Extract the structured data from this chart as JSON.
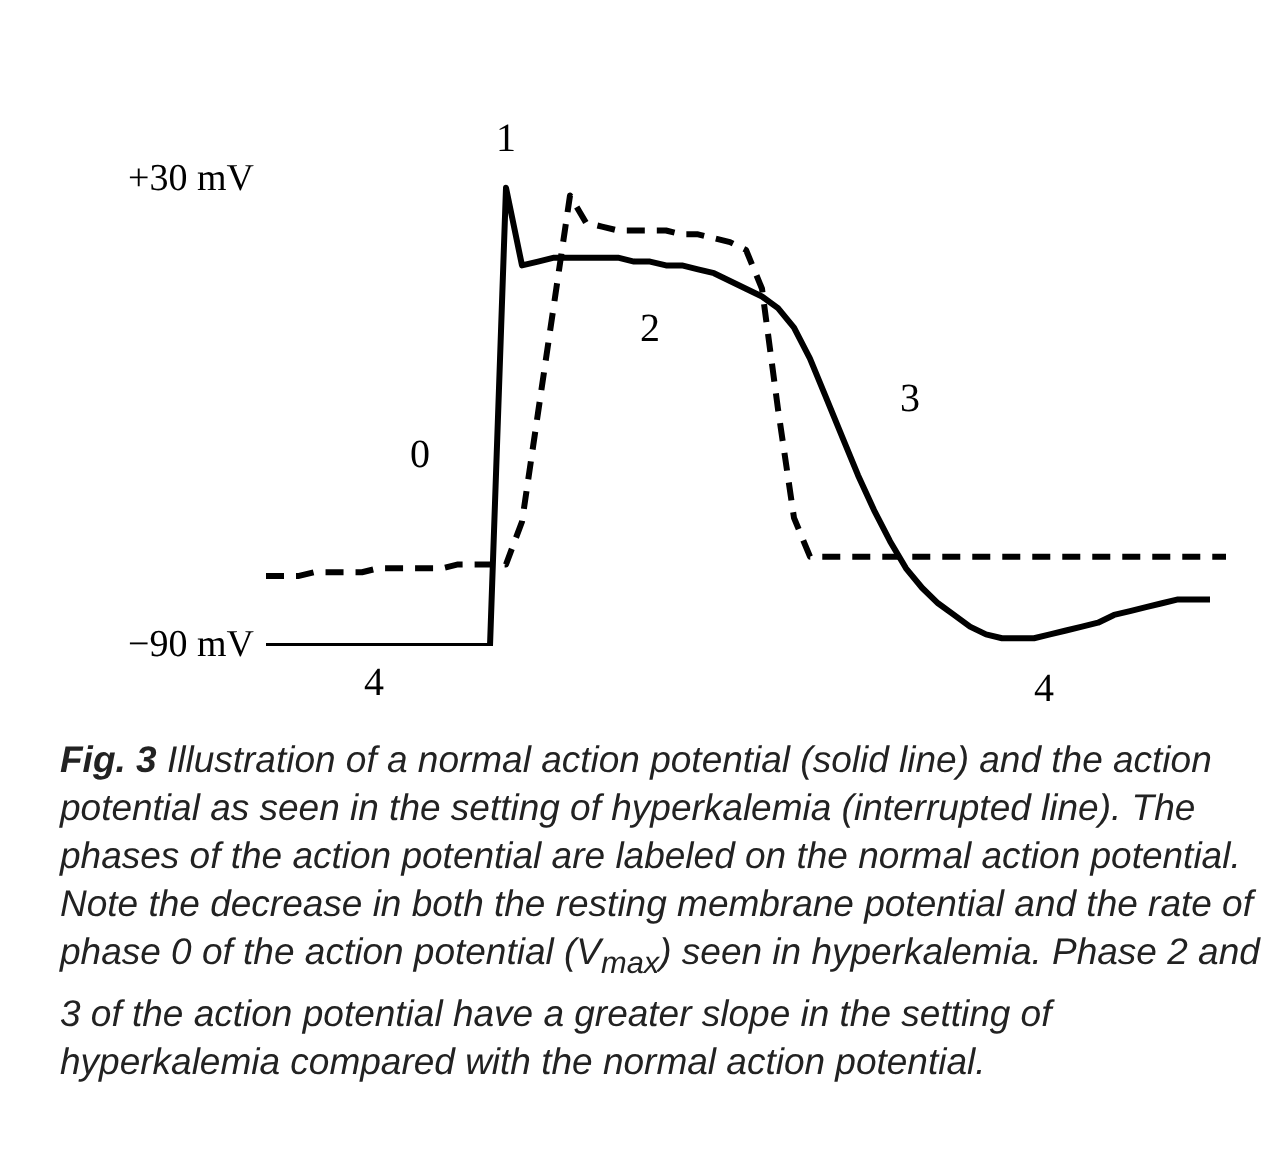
{
  "chart_data": {
    "type": "line",
    "title": "Fig. 3",
    "categories": [
      null,
      null,
      null,
      null,
      null,
      null,
      null,
      null,
      null,
      null,
      null,
      null,
      null,
      null,
      null,
      null,
      null,
      null,
      null,
      null,
      null,
      null,
      null,
      null,
      null,
      null,
      null,
      null,
      null,
      null,
      null,
      null,
      null,
      null,
      null,
      null,
      null,
      null,
      null,
      null,
      null,
      null,
      null,
      null,
      null,
      null,
      null,
      null,
      null,
      null,
      null,
      null,
      null,
      null,
      null,
      null,
      null,
      null,
      null,
      null,
      null
    ],
    "series": [
      {
        "color": "#000000",
        "line_style": "solid",
        "values": [
          -90,
          -90,
          -90,
          -90,
          -90,
          -90,
          -90,
          -90,
          -90,
          -90,
          -90,
          -90,
          -90,
          -90,
          -90,
          28,
          8,
          9,
          10,
          10,
          10,
          10,
          10,
          9,
          9,
          8,
          8,
          7,
          6,
          4,
          2,
          0,
          -3,
          -8,
          -16,
          -26,
          -36,
          -46,
          -55,
          -63,
          -70,
          -75,
          -79,
          -82,
          -85,
          -87,
          -88,
          -88,
          -88,
          -87,
          -86,
          -85,
          -84,
          -82,
          -81,
          -80,
          -79,
          -78,
          -78,
          -78,
          null
        ]
      },
      {
        "color": "#000000",
        "line_style": "dashed",
        "values": [
          -72,
          -72,
          -72,
          -71,
          -71,
          -71,
          -71,
          -70,
          -70,
          -70,
          -70,
          -70,
          -69,
          -69,
          -69,
          -69,
          -58,
          -30,
          -2,
          26,
          19,
          18,
          17,
          17,
          17,
          17,
          16,
          16,
          15,
          14,
          12,
          2,
          -29,
          -57,
          -67,
          -67,
          -67,
          -67,
          -67,
          -67,
          -67,
          -67,
          -67,
          -67,
          -67,
          -67,
          -67,
          -67,
          -67,
          -67,
          -67,
          -67,
          -67,
          -67,
          -67,
          -67,
          -67,
          -67,
          -67,
          -67,
          -67
        ]
      }
    ],
    "ylim": [
      -90,
      30
    ],
    "yticks": [
      {
        "value": 30,
        "label": "+30 mV"
      },
      {
        "value": -90,
        "label": "−90 mV"
      }
    ],
    "tick_labels": "y",
    "grid": false,
    "legend": false,
    "marker": "none",
    "annotations": [
      "1",
      "2",
      "3",
      "0",
      "4",
      "4",
      "Illustration of a normal action potential (solid line) and the action potential as seen in the setting of hyperkalemia (interrupted line). The phases of the action potential are labeled on the normal action potential. Note the decrease in both the resting membrane potential and the rate of phase 0 of the action potential (V$_{max}$) seen in hyperkalemia. Phase 2 and 3 of the action potential have a greater slope in the setting of hyperkalemia compared with the normal action potential."
    ]
  }
}
